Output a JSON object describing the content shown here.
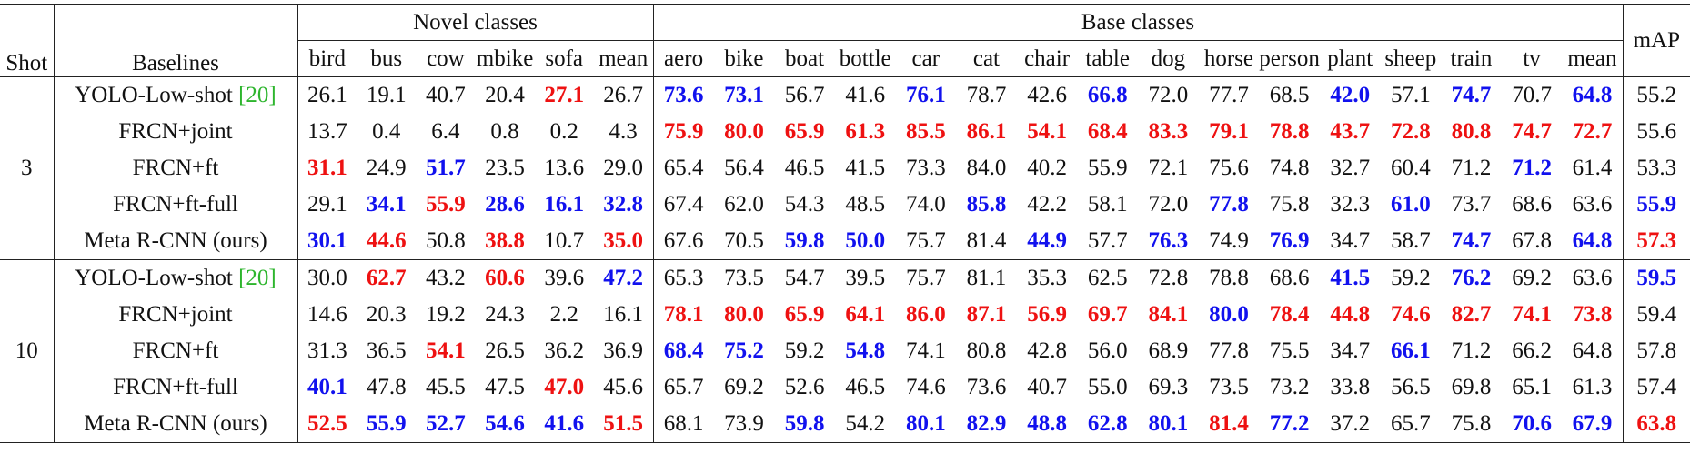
{
  "header": {
    "shot": "Shot",
    "baselines": "Baselines",
    "map": "mAP",
    "novel_title": "Novel classes",
    "base_title": "Base classes",
    "novel": [
      "bird",
      "bus",
      "cow",
      "mbike",
      "sofa",
      "mean"
    ],
    "base": [
      "aero",
      "bike",
      "boat",
      "bottle",
      "car",
      "cat",
      "chair",
      "table",
      "dog",
      "horse",
      "person",
      "plant",
      "sheep",
      "train",
      "tv",
      "mean"
    ]
  },
  "groups": [
    {
      "shot": "3",
      "rows": [
        {
          "name": "YOLO-Low-shot ",
          "ref": "[20]",
          "cells": [
            "26.1",
            "19.1",
            "40.7",
            "20.4",
            "27.1",
            "26.7",
            "73.6",
            "73.1",
            "56.7",
            "41.6",
            "76.1",
            "78.7",
            "42.6",
            "66.8",
            "72.0",
            "77.7",
            "68.5",
            "42.0",
            "57.1",
            "74.7",
            "70.7",
            "64.8",
            "55.2"
          ],
          "colors": [
            null,
            null,
            null,
            null,
            "#e11",
            null,
            "#11e",
            "#11e",
            null,
            null,
            "#11e",
            null,
            null,
            "#11e",
            null,
            null,
            null,
            "#11e",
            null,
            "#11e",
            null,
            "#11e",
            null
          ]
        },
        {
          "name": "FRCN+joint",
          "cells": [
            "13.7",
            "0.4",
            "6.4",
            "0.8",
            "0.2",
            "4.3",
            "75.9",
            "80.0",
            "65.9",
            "61.3",
            "85.5",
            "86.1",
            "54.1",
            "68.4",
            "83.3",
            "79.1",
            "78.8",
            "43.7",
            "72.8",
            "80.8",
            "74.7",
            "72.7",
            "55.6"
          ],
          "colors": [
            null,
            null,
            null,
            null,
            null,
            null,
            "#e11",
            "#e11",
            "#e11",
            "#e11",
            "#e11",
            "#e11",
            "#e11",
            "#e11",
            "#e11",
            "#e11",
            "#e11",
            "#e11",
            "#e11",
            "#e11",
            "#e11",
            "#e11",
            null
          ]
        },
        {
          "name": "FRCN+ft",
          "cells": [
            "31.1",
            "24.9",
            "51.7",
            "23.5",
            "13.6",
            "29.0",
            "65.4",
            "56.4",
            "46.5",
            "41.5",
            "73.3",
            "84.0",
            "40.2",
            "55.9",
            "72.1",
            "75.6",
            "74.8",
            "32.7",
            "60.4",
            "71.2",
            "71.2",
            "61.4",
            "53.3"
          ],
          "colors": [
            "#e11",
            null,
            "#11e",
            null,
            null,
            null,
            null,
            null,
            null,
            null,
            null,
            null,
            null,
            null,
            null,
            null,
            null,
            null,
            null,
            null,
            "#11e",
            null,
            null
          ]
        },
        {
          "name": "FRCN+ft-full",
          "cells": [
            "29.1",
            "34.1",
            "55.9",
            "28.6",
            "16.1",
            "32.8",
            "67.4",
            "62.0",
            "54.3",
            "48.5",
            "74.0",
            "85.8",
            "42.2",
            "58.1",
            "72.0",
            "77.8",
            "75.8",
            "32.3",
            "61.0",
            "73.7",
            "68.6",
            "63.6",
            "55.9"
          ],
          "colors": [
            null,
            "#11e",
            "#e11",
            "#11e",
            "#11e",
            "#11e",
            null,
            null,
            null,
            null,
            null,
            "#11e",
            null,
            null,
            null,
            "#11e",
            null,
            null,
            "#11e",
            null,
            null,
            null,
            "#11e"
          ]
        },
        {
          "name": "Meta R-CNN (ours)",
          "cells": [
            "30.1",
            "44.6",
            "50.8",
            "38.8",
            "10.7",
            "35.0",
            "67.6",
            "70.5",
            "59.8",
            "50.0",
            "75.7",
            "81.4",
            "44.9",
            "57.7",
            "76.3",
            "74.9",
            "76.9",
            "34.7",
            "58.7",
            "74.7",
            "67.8",
            "64.8",
            "57.3"
          ],
          "colors": [
            "#11e",
            "#e11",
            null,
            "#e11",
            null,
            "#e11",
            null,
            null,
            "#11e",
            "#11e",
            null,
            null,
            "#11e",
            null,
            "#11e",
            null,
            "#11e",
            null,
            null,
            "#11e",
            null,
            "#11e",
            "#e11"
          ]
        }
      ]
    },
    {
      "shot": "10",
      "rows": [
        {
          "name": "YOLO-Low-shot ",
          "ref": "[20]",
          "cells": [
            "30.0",
            "62.7",
            "43.2",
            "60.6",
            "39.6",
            "47.2",
            "65.3",
            "73.5",
            "54.7",
            "39.5",
            "75.7",
            "81.1",
            "35.3",
            "62.5",
            "72.8",
            "78.8",
            "68.6",
            "41.5",
            "59.2",
            "76.2",
            "69.2",
            "63.6",
            "59.5"
          ],
          "colors": [
            null,
            "#e11",
            null,
            "#e11",
            null,
            "#11e",
            null,
            null,
            null,
            null,
            null,
            null,
            null,
            null,
            null,
            null,
            null,
            "#11e",
            null,
            "#11e",
            null,
            null,
            "#11e"
          ]
        },
        {
          "name": "FRCN+joint",
          "cells": [
            "14.6",
            "20.3",
            "19.2",
            "24.3",
            "2.2",
            "16.1",
            "78.1",
            "80.0",
            "65.9",
            "64.1",
            "86.0",
            "87.1",
            "56.9",
            "69.7",
            "84.1",
            "80.0",
            "78.4",
            "44.8",
            "74.6",
            "82.7",
            "74.1",
            "73.8",
            "59.4"
          ],
          "colors": [
            null,
            null,
            null,
            null,
            null,
            null,
            "#e11",
            "#e11",
            "#e11",
            "#e11",
            "#e11",
            "#e11",
            "#e11",
            "#e11",
            "#e11",
            "#11e",
            "#e11",
            "#e11",
            "#e11",
            "#e11",
            "#e11",
            "#e11",
            null
          ]
        },
        {
          "name": "FRCN+ft",
          "cells": [
            "31.3",
            "36.5",
            "54.1",
            "26.5",
            "36.2",
            "36.9",
            "68.4",
            "75.2",
            "59.2",
            "54.8",
            "74.1",
            "80.8",
            "42.8",
            "56.0",
            "68.9",
            "77.8",
            "75.5",
            "34.7",
            "66.1",
            "71.2",
            "66.2",
            "64.8",
            "57.8"
          ],
          "colors": [
            null,
            null,
            "#e11",
            null,
            null,
            null,
            "#11e",
            "#11e",
            null,
            "#11e",
            null,
            null,
            null,
            null,
            null,
            null,
            null,
            null,
            "#11e",
            null,
            null,
            null,
            null
          ]
        },
        {
          "name": "FRCN+ft-full",
          "cells": [
            "40.1",
            "47.8",
            "45.5",
            "47.5",
            "47.0",
            "45.6",
            "65.7",
            "69.2",
            "52.6",
            "46.5",
            "74.6",
            "73.6",
            "40.7",
            "55.0",
            "69.3",
            "73.5",
            "73.2",
            "33.8",
            "56.5",
            "69.8",
            "65.1",
            "61.3",
            "57.4"
          ],
          "colors": [
            "#11e",
            null,
            null,
            null,
            "#e11",
            null,
            null,
            null,
            null,
            null,
            null,
            null,
            null,
            null,
            null,
            null,
            null,
            null,
            null,
            null,
            null,
            null,
            null
          ]
        },
        {
          "name": "Meta R-CNN (ours)",
          "cells": [
            "52.5",
            "55.9",
            "52.7",
            "54.6",
            "41.6",
            "51.5",
            "68.1",
            "73.9",
            "59.8",
            "54.2",
            "80.1",
            "82.9",
            "48.8",
            "62.8",
            "80.1",
            "81.4",
            "77.2",
            "37.2",
            "65.7",
            "75.8",
            "70.6",
            "67.9",
            "63.8"
          ],
          "colors": [
            "#e11",
            "#11e",
            "#11e",
            "#11e",
            "#11e",
            "#e11",
            null,
            null,
            "#11e",
            null,
            "#11e",
            "#11e",
            "#11e",
            "#11e",
            "#11e",
            "#e11",
            "#11e",
            null,
            null,
            null,
            "#11e",
            "#11e",
            "#e11"
          ]
        }
      ]
    }
  ]
}
